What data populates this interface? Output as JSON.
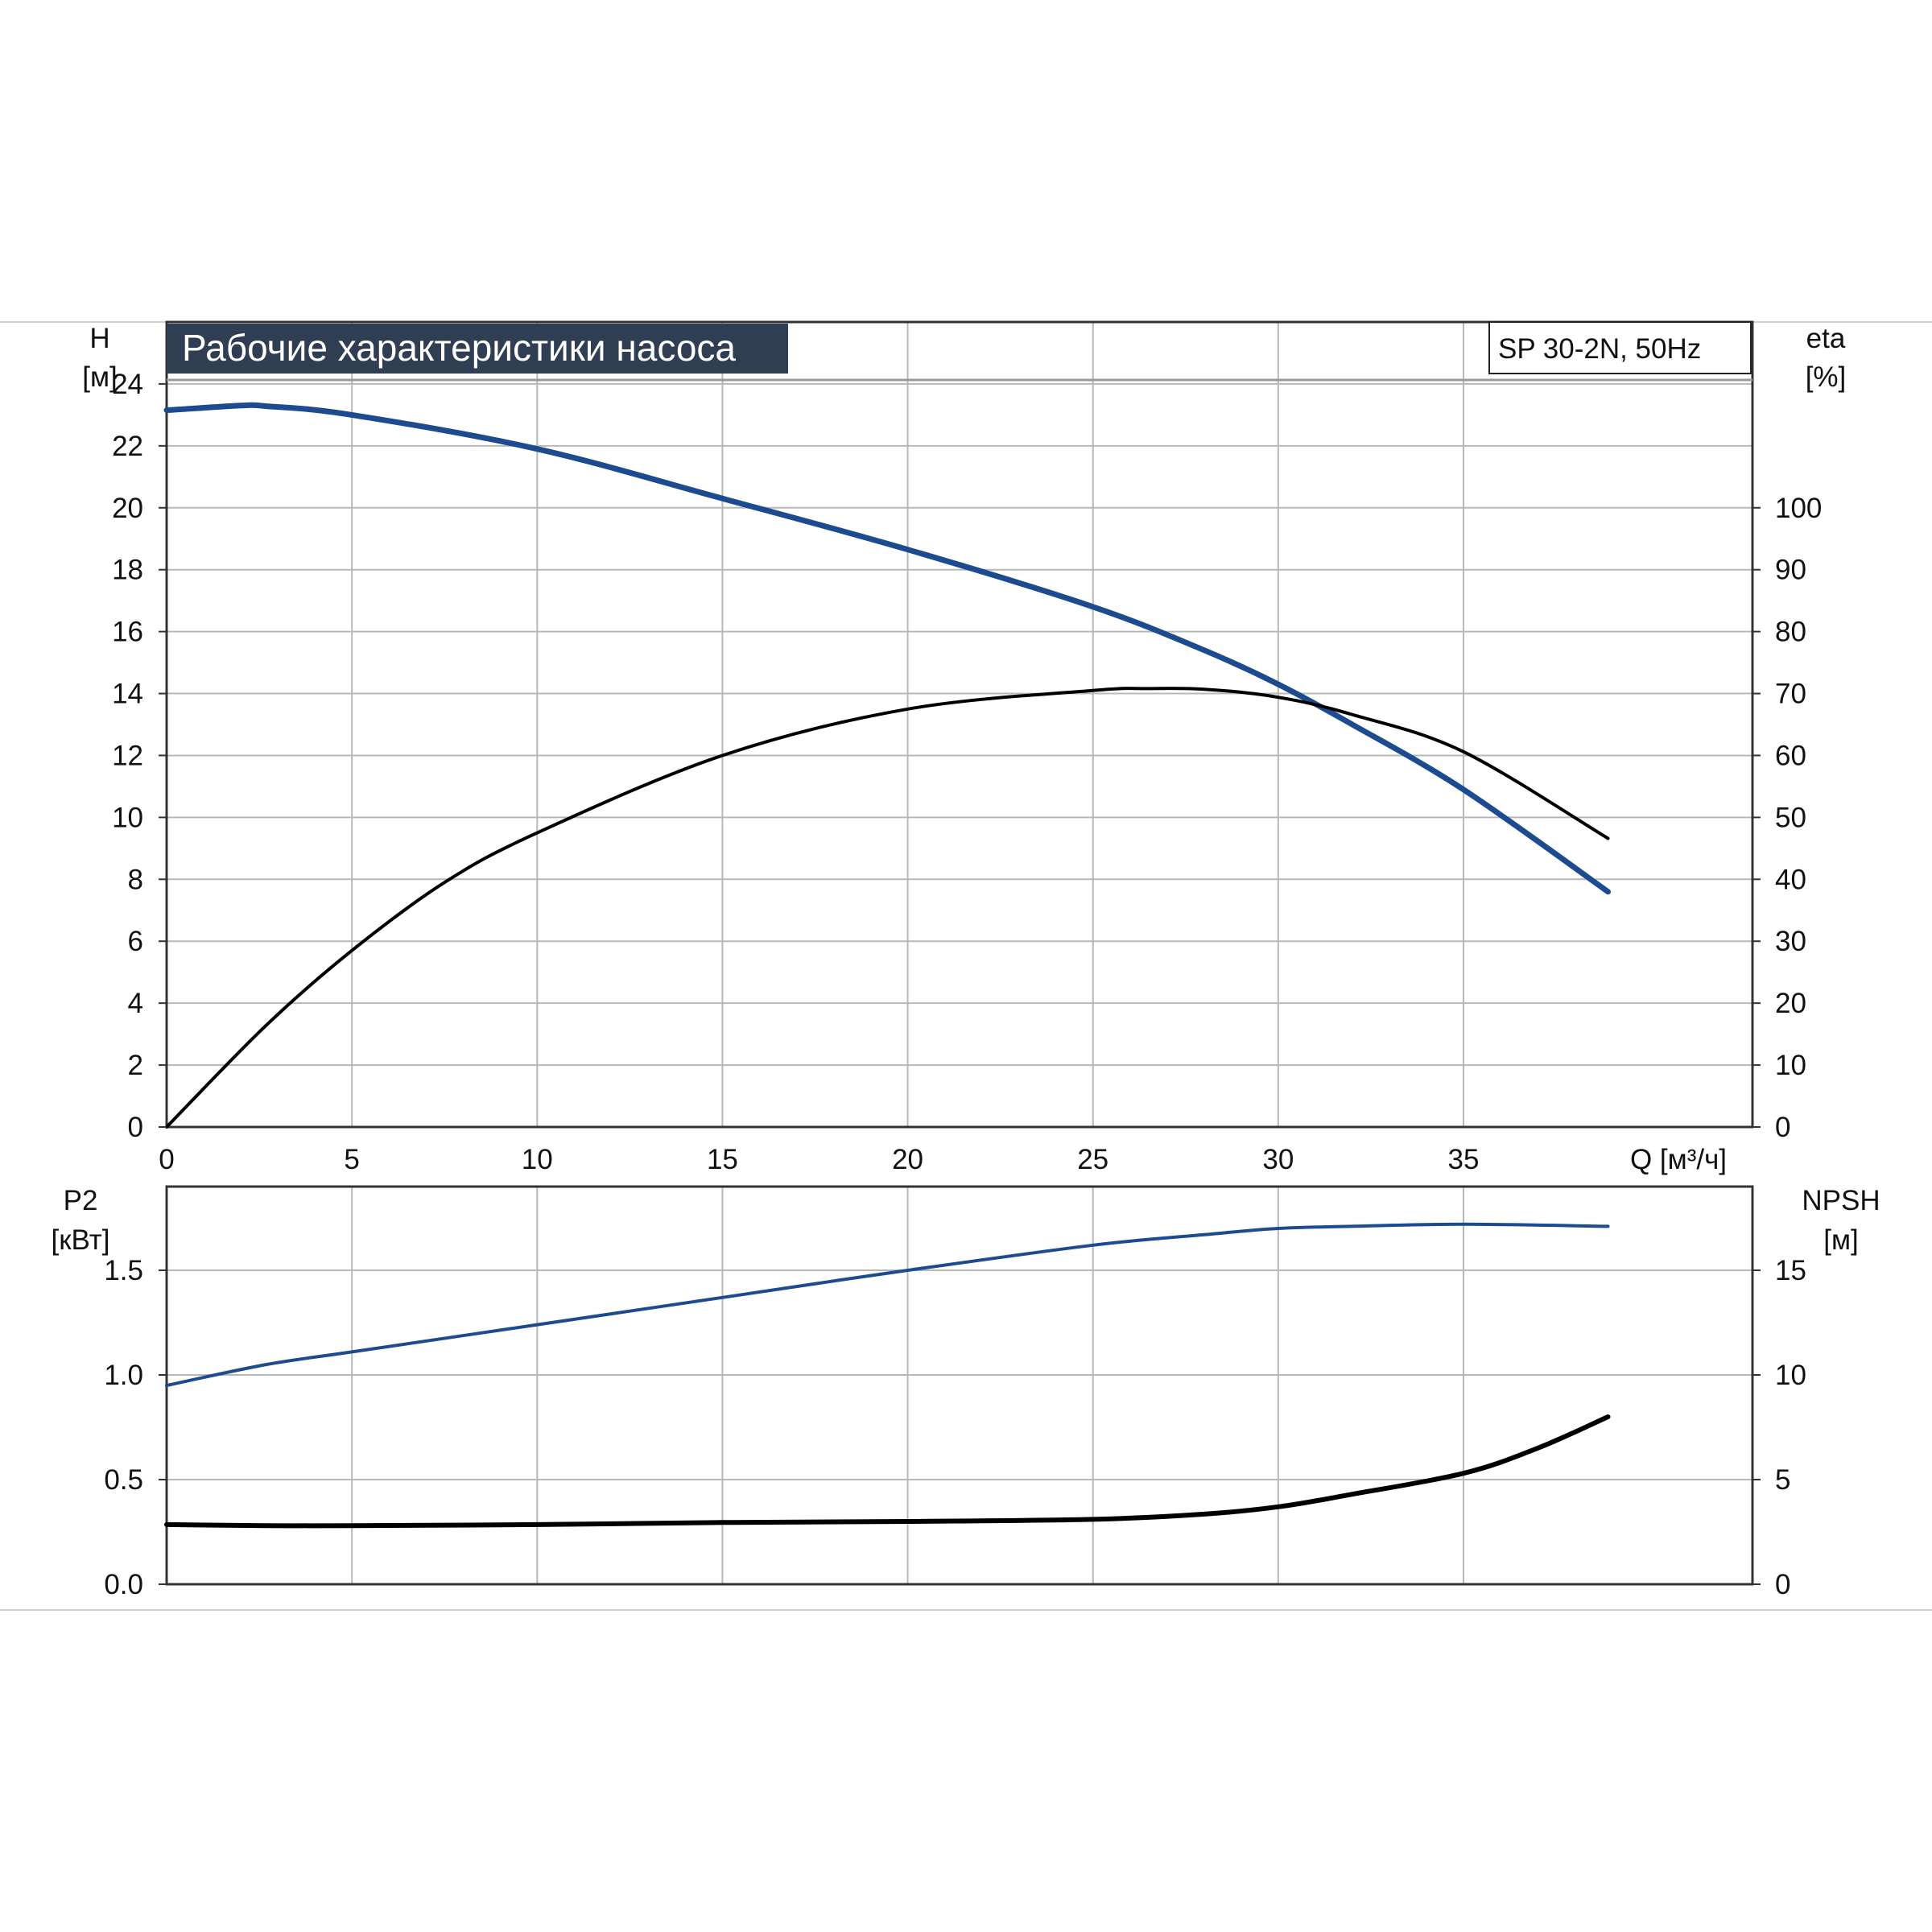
{
  "colors": {
    "title_bg": "#2f3e52",
    "title_text": "#ffffff",
    "grid": "#b8b8b8",
    "axis": "#333333",
    "curve_blue": "#1d4b8f",
    "curve_black": "#000000"
  },
  "chart_data": [
    {
      "type": "line",
      "title": "Рабочие характеристики насоса",
      "model_label": "SP 30-2N, 50Hz",
      "xlabel": "Q [м³/ч]",
      "ylabel_left": [
        "H",
        "[м]"
      ],
      "ylabel_right": [
        "eta",
        "[%]"
      ],
      "xlim": [
        0,
        42.8
      ],
      "ylim_left": [
        0,
        26
      ],
      "ylim_right": [
        0,
        130
      ],
      "x_ticks": [
        0,
        5,
        10,
        15,
        20,
        25,
        30,
        35
      ],
      "x_tick_labels": [
        "0",
        "5",
        "10",
        "15",
        "20",
        "25",
        "30",
        "35"
      ],
      "y_left_ticks": [
        0,
        2,
        4,
        6,
        8,
        10,
        12,
        14,
        16,
        18,
        20,
        22,
        24
      ],
      "y_left_tick_labels": [
        "0",
        "2",
        "4",
        "6",
        "8",
        "10",
        "12",
        "14",
        "16",
        "18",
        "20",
        "22",
        "24"
      ],
      "y_right_ticks": [
        0,
        10,
        20,
        30,
        40,
        50,
        60,
        70,
        80,
        90,
        100
      ],
      "y_right_tick_labels": [
        "0",
        "10",
        "20",
        "30",
        "40",
        "50",
        "60",
        "70",
        "80",
        "90",
        "100"
      ],
      "grid": true,
      "series": [
        {
          "name": "H",
          "axis": "left",
          "color": "#1d4b8f",
          "x": [
            0,
            2,
            2.7,
            5,
            10,
            15,
            20,
            25,
            28,
            30,
            32,
            35,
            38.9
          ],
          "y": [
            23.15,
            23.3,
            23.28,
            23.0,
            21.9,
            20.3,
            18.65,
            16.8,
            15.4,
            14.3,
            13.0,
            10.9,
            7.6
          ]
        },
        {
          "name": "eta",
          "axis": "right",
          "color": "#000000",
          "x": [
            0,
            2.7,
            5,
            7.5,
            10,
            15,
            20,
            25,
            26.5,
            28,
            30,
            32,
            35,
            38.9
          ],
          "y": [
            0,
            16.5,
            28.5,
            39.5,
            47.5,
            60,
            67.5,
            70.5,
            70.8,
            70.7,
            69.4,
            66.6,
            60.6,
            46.6
          ]
        }
      ]
    },
    {
      "type": "line",
      "xlabel": "",
      "ylabel_left": [
        "P2",
        "[кВт]"
      ],
      "ylabel_right": [
        "NPSH",
        "[м]"
      ],
      "xlim": [
        0,
        42.8
      ],
      "ylim_left": [
        0,
        1.9
      ],
      "ylim_right": [
        0,
        19
      ],
      "x_ticks": [
        0,
        5,
        10,
        15,
        20,
        25,
        30,
        35
      ],
      "y_left_ticks": [
        0.0,
        0.5,
        1.0,
        1.5
      ],
      "y_left_tick_labels": [
        "0.0",
        "0.5",
        "1.0",
        "1.5"
      ],
      "y_right_ticks": [
        0,
        5,
        10,
        15
      ],
      "y_right_tick_labels": [
        "0",
        "5",
        "10",
        "15"
      ],
      "grid": true,
      "series": [
        {
          "name": "P2",
          "axis": "left",
          "color": "#1d4b8f",
          "x": [
            0,
            2.7,
            5,
            10,
            15,
            20,
            25,
            28,
            30,
            32,
            35,
            38.9
          ],
          "y": [
            0.95,
            1.05,
            1.11,
            1.24,
            1.37,
            1.5,
            1.62,
            1.67,
            1.7,
            1.71,
            1.72,
            1.71
          ]
        },
        {
          "name": "NPSH",
          "axis": "right",
          "color": "#000000",
          "x": [
            0,
            2.7,
            5,
            10,
            15,
            20,
            25,
            28,
            30,
            32,
            35,
            37,
            38.9
          ],
          "y": [
            2.85,
            2.8,
            2.8,
            2.85,
            2.95,
            3.0,
            3.1,
            3.35,
            3.7,
            4.3,
            5.3,
            6.5,
            8.0
          ]
        }
      ]
    }
  ]
}
